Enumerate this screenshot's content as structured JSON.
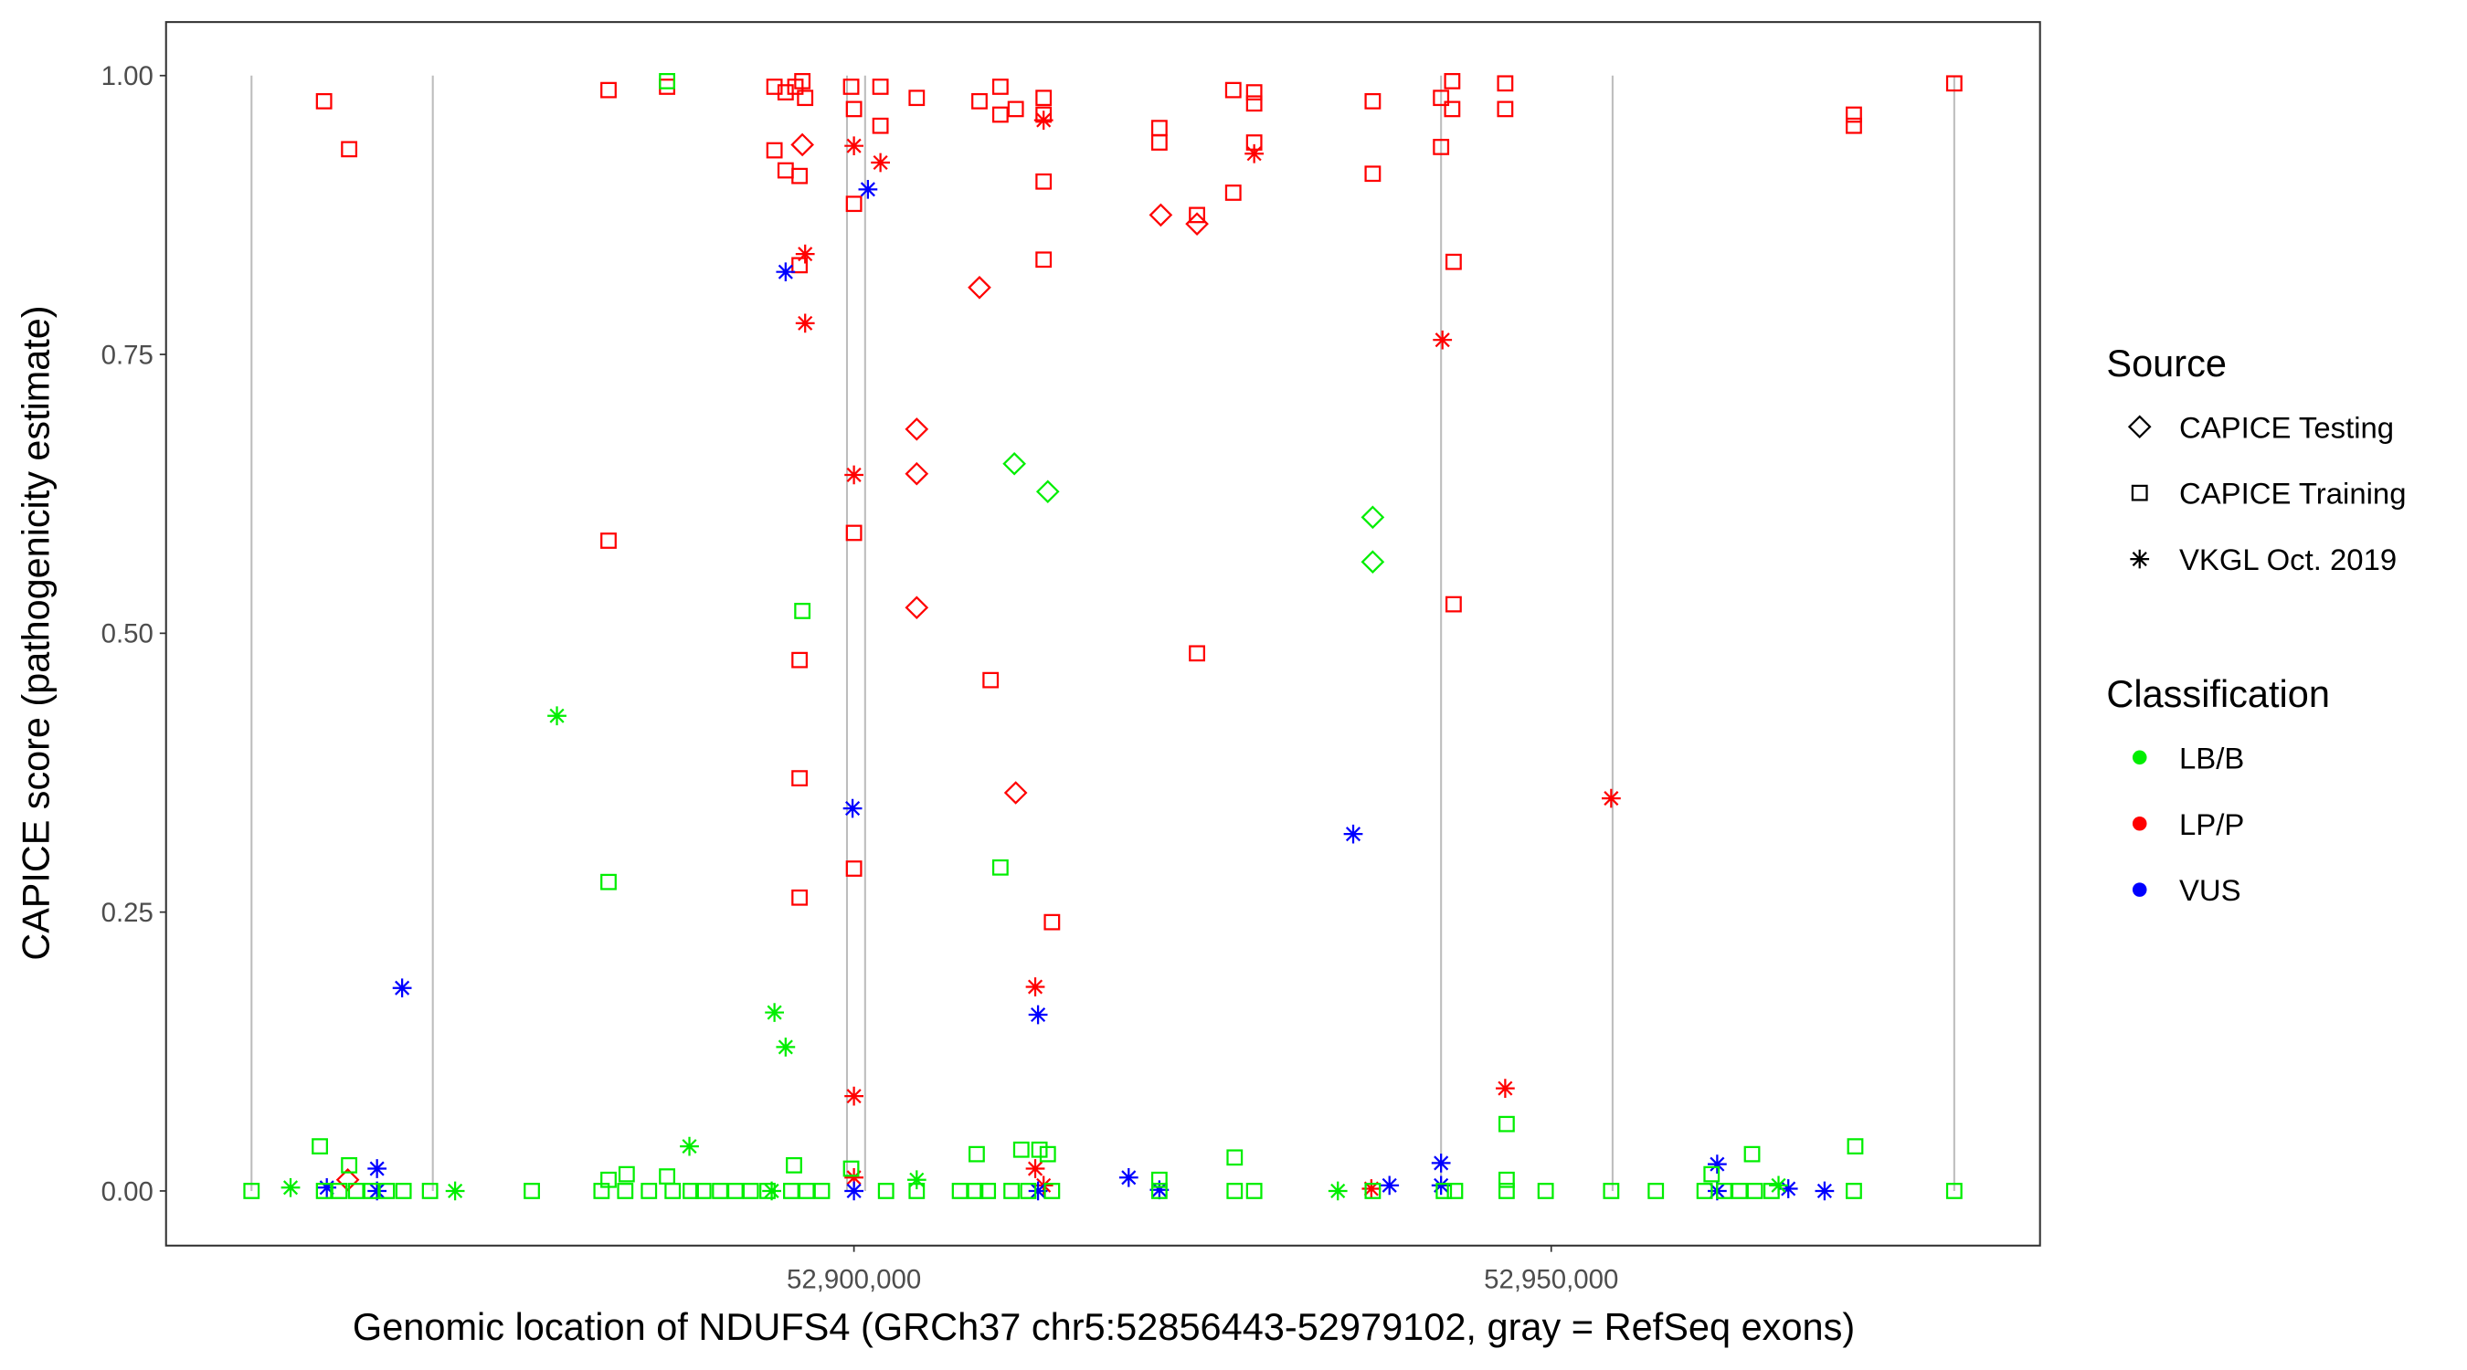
{
  "chart_data": {
    "type": "scatter",
    "xlabel": "Genomic location of NDUFS4 (GRCh37 chr5:52856443-52979102, gray = RefSeq exons)",
    "ylabel": "CAPICE score (pathogenicity estimate)",
    "xlim": [
      52850671,
      52985050
    ],
    "ylim": [
      -0.049,
      1.048
    ],
    "x_ticks": [
      52900000,
      52950000
    ],
    "x_tick_labels": [
      "52,900,000",
      "52,950,000"
    ],
    "y_ticks": [
      0,
      0.25,
      0.5,
      0.75,
      1
    ],
    "y_tick_labels": [
      "0.00",
      "0.25",
      "0.50",
      "0.75",
      "1.00"
    ],
    "grid": false,
    "exon_positions": [
      52856800,
      52869800,
      52899500,
      52900800,
      52942100,
      52954400,
      52978900
    ],
    "legend_placement": "right",
    "legend": {
      "source_title": "Source",
      "sources": [
        {
          "label": "CAPICE Testing",
          "shape": "diamond"
        },
        {
          "label": "CAPICE Training",
          "shape": "square"
        },
        {
          "label": "VKGL Oct. 2019",
          "shape": "asterisk"
        }
      ],
      "class_title": "Classification",
      "classes": [
        {
          "label": "LB/B",
          "color": "#00EE00"
        },
        {
          "label": "LP/P",
          "color": "#FF0000"
        },
        {
          "label": "VUS",
          "color": "#0000FF"
        }
      ]
    },
    "series": [
      {
        "source": "CAPICE Training",
        "class": "LP/P",
        "points": [
          [
            52862000,
            0.977
          ],
          [
            52863800,
            0.934
          ],
          [
            52882400,
            0.987
          ],
          [
            52886600,
            0.99
          ],
          [
            52894300,
            0.99
          ],
          [
            52895100,
            0.985
          ],
          [
            52895800,
            0.99
          ],
          [
            52896300,
            0.995
          ],
          [
            52896500,
            0.98
          ],
          [
            52899800,
            0.99
          ],
          [
            52900000,
            0.97
          ],
          [
            52901900,
            0.99
          ],
          [
            52904500,
            0.98
          ],
          [
            52909000,
            0.977
          ],
          [
            52910500,
            0.99
          ],
          [
            52910500,
            0.965
          ],
          [
            52911600,
            0.97
          ],
          [
            52913600,
            0.98
          ],
          [
            52913600,
            0.965
          ],
          [
            52921900,
            0.953
          ],
          [
            52921900,
            0.94
          ],
          [
            52927200,
            0.987
          ],
          [
            52928700,
            0.985
          ],
          [
            52928700,
            0.975
          ],
          [
            52937200,
            0.977
          ],
          [
            52942100,
            0.98
          ],
          [
            52942900,
            0.995
          ],
          [
            52942900,
            0.97
          ],
          [
            52946700,
            0.993
          ],
          [
            52946700,
            0.97
          ],
          [
            52971700,
            0.965
          ],
          [
            52971700,
            0.955
          ],
          [
            52978900,
            0.993
          ],
          [
            52894300,
            0.933
          ],
          [
            52895100,
            0.915
          ],
          [
            52896100,
            0.91
          ],
          [
            52900000,
            0.885
          ],
          [
            52901900,
            0.955
          ],
          [
            52913600,
            0.905
          ],
          [
            52924600,
            0.875
          ],
          [
            52927200,
            0.895
          ],
          [
            52928700,
            0.94
          ],
          [
            52937200,
            0.912
          ],
          [
            52942100,
            0.936
          ],
          [
            52896100,
            0.83
          ],
          [
            52913600,
            0.835
          ],
          [
            52943000,
            0.833
          ],
          [
            52882400,
            0.583
          ],
          [
            52900000,
            0.59
          ],
          [
            52943000,
            0.526
          ],
          [
            52924600,
            0.482
          ],
          [
            52909800,
            0.458
          ],
          [
            52896100,
            0.476
          ],
          [
            52896100,
            0.37
          ],
          [
            52900000,
            0.289
          ],
          [
            52896100,
            0.263
          ],
          [
            52914200,
            0.241
          ]
        ]
      },
      {
        "source": "CAPICE Testing",
        "class": "LP/P",
        "points": [
          [
            52896300,
            0.938
          ],
          [
            52922000,
            0.875
          ],
          [
            52924600,
            0.867
          ],
          [
            52909000,
            0.81
          ],
          [
            52904500,
            0.683
          ],
          [
            52904500,
            0.643
          ],
          [
            52904500,
            0.523
          ],
          [
            52911600,
            0.357
          ],
          [
            52863700,
            0.01
          ]
        ]
      },
      {
        "source": "VKGL Oct. 2019",
        "class": "LP/P",
        "points": [
          [
            52900000,
            0.937
          ],
          [
            52901900,
            0.922
          ],
          [
            52928700,
            0.93
          ],
          [
            52913600,
            0.96
          ],
          [
            52896500,
            0.84
          ],
          [
            52896500,
            0.778
          ],
          [
            52942200,
            0.763
          ],
          [
            52900000,
            0.642
          ],
          [
            52954300,
            0.352
          ],
          [
            52913000,
            0.183
          ],
          [
            52900000,
            0.085
          ],
          [
            52946700,
            0.092
          ],
          [
            52900000,
            0.012
          ],
          [
            52913000,
            0.02
          ],
          [
            52913600,
            0.005
          ],
          [
            52937100,
            0.002
          ]
        ]
      },
      {
        "source": "VKGL Oct. 2019",
        "class": "VUS",
        "points": [
          [
            52901000,
            0.898
          ],
          [
            52895100,
            0.824
          ],
          [
            52899900,
            0.343
          ],
          [
            52935800,
            0.32
          ],
          [
            52867600,
            0.182
          ],
          [
            52913200,
            0.158
          ],
          [
            52865800,
            0.02
          ],
          [
            52862200,
            0.003
          ],
          [
            52865800,
            0.0
          ],
          [
            52900000,
            0.0
          ],
          [
            52913200,
            0.0
          ],
          [
            52919700,
            0.012
          ],
          [
            52921900,
            0.001
          ],
          [
            52938400,
            0.005
          ],
          [
            52942100,
            0.025
          ],
          [
            52942100,
            0.005
          ],
          [
            52961900,
            0.024
          ],
          [
            52961900,
            0.0
          ],
          [
            52967000,
            0.002
          ],
          [
            52969600,
            0.0
          ]
        ]
      },
      {
        "source": "CAPICE Testing",
        "class": "LB/B",
        "points": [
          [
            52911500,
            0.652
          ],
          [
            52913900,
            0.627
          ],
          [
            52937200,
            0.604
          ],
          [
            52937200,
            0.564
          ]
        ]
      },
      {
        "source": "CAPICE Training",
        "class": "LB/B",
        "points": [
          [
            52896300,
            0.52
          ],
          [
            52882400,
            0.277
          ],
          [
            52910500,
            0.29
          ],
          [
            52886600,
            0.995
          ],
          [
            52861700,
            0.04
          ],
          [
            52946800,
            0.06
          ],
          [
            52971800,
            0.04
          ],
          [
            52964400,
            0.033
          ],
          [
            52927300,
            0.03
          ],
          [
            52908800,
            0.033
          ],
          [
            52912000,
            0.037
          ],
          [
            52913300,
            0.037
          ],
          [
            52913900,
            0.033
          ],
          [
            52863800,
            0.023
          ],
          [
            52895700,
            0.023
          ],
          [
            52882400,
            0.01
          ],
          [
            52883700,
            0.015
          ],
          [
            52886600,
            0.013
          ],
          [
            52899800,
            0.02
          ],
          [
            52921900,
            0.01
          ],
          [
            52946800,
            0.01
          ],
          [
            52961500,
            0.015
          ],
          [
            52856800,
            0.0
          ],
          [
            52862000,
            0.0
          ],
          [
            52863100,
            0.0
          ],
          [
            52864300,
            0.0
          ],
          [
            52865400,
            0.0
          ],
          [
            52866500,
            0.0
          ],
          [
            52867700,
            0.0
          ],
          [
            52869600,
            0.0
          ],
          [
            52876900,
            0.0
          ],
          [
            52881900,
            0.0
          ],
          [
            52883600,
            0.0
          ],
          [
            52885300,
            0.0
          ],
          [
            52887000,
            0.0
          ],
          [
            52888300,
            0.0
          ],
          [
            52889200,
            0.0
          ],
          [
            52890400,
            0.0
          ],
          [
            52891500,
            0.0
          ],
          [
            52892600,
            0.0
          ],
          [
            52893800,
            0.0
          ],
          [
            52895500,
            0.0
          ],
          [
            52896600,
            0.0
          ],
          [
            52897700,
            0.0
          ],
          [
            52902300,
            0.0
          ],
          [
            52904500,
            0.0
          ],
          [
            52907600,
            0.0
          ],
          [
            52908700,
            0.0
          ],
          [
            52909600,
            0.0
          ],
          [
            52911300,
            0.0
          ],
          [
            52912500,
            0.0
          ],
          [
            52914200,
            0.0
          ],
          [
            52921900,
            0.0
          ],
          [
            52927300,
            0.0
          ],
          [
            52928700,
            0.0
          ],
          [
            52937200,
            0.0
          ],
          [
            52942300,
            0.0
          ],
          [
            52943100,
            0.0
          ],
          [
            52946800,
            0.0
          ],
          [
            52949600,
            0.0
          ],
          [
            52954300,
            0.0
          ],
          [
            52957500,
            0.0
          ],
          [
            52961000,
            0.0
          ],
          [
            52962400,
            0.0
          ],
          [
            52963500,
            0.0
          ],
          [
            52964600,
            0.0
          ],
          [
            52965800,
            0.0
          ],
          [
            52971700,
            0.0
          ],
          [
            52978900,
            0.0
          ]
        ]
      },
      {
        "source": "VKGL Oct. 2019",
        "class": "LB/B",
        "points": [
          [
            52878700,
            0.426
          ],
          [
            52894300,
            0.16
          ],
          [
            52895100,
            0.129
          ],
          [
            52888200,
            0.04
          ],
          [
            52859600,
            0.003
          ],
          [
            52871400,
            0.0
          ],
          [
            52904500,
            0.01
          ],
          [
            52934700,
            0.0
          ],
          [
            52894100,
            0.0
          ],
          [
            52966300,
            0.005
          ]
        ]
      }
    ]
  }
}
